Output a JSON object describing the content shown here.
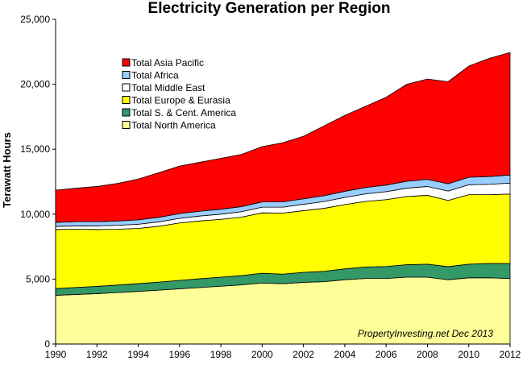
{
  "chart_data": {
    "type": "area",
    "stacked": true,
    "title": "Electricity  Generation per Region",
    "ylabel": "Terawatt Hours",
    "xlabel": "",
    "xlim": [
      1990,
      2012
    ],
    "ylim": [
      0,
      25000
    ],
    "x_ticks": [
      1990,
      1992,
      1994,
      1996,
      1998,
      2000,
      2002,
      2004,
      2006,
      2008,
      2010,
      2012
    ],
    "y_ticks": [
      "0",
      "5,000",
      "10,000",
      "15,000",
      "20,000",
      "25,000"
    ],
    "y_tick_values": [
      0,
      5000,
      10000,
      15000,
      20000,
      25000
    ],
    "grid": false,
    "legend_position": "top-left",
    "annotation": "PropertyInvesting.net  Dec 2013",
    "x": [
      1990,
      1991,
      1992,
      1993,
      1994,
      1995,
      1996,
      1997,
      1998,
      1999,
      2000,
      2001,
      2002,
      2003,
      2004,
      2005,
      2006,
      2007,
      2008,
      2009,
      2010,
      2011,
      2012
    ],
    "series": [
      {
        "name": "Total North America",
        "color": "#ffff99",
        "values": [
          3750,
          3820,
          3880,
          3960,
          4050,
          4150,
          4250,
          4350,
          4450,
          4550,
          4700,
          4650,
          4750,
          4800,
          4950,
          5050,
          5050,
          5150,
          5150,
          4950,
          5100,
          5100,
          5050
        ]
      },
      {
        "name": "Total S. & Cent. America",
        "color": "#339966",
        "values": [
          520,
          540,
          560,
          580,
          600,
          620,
          650,
          680,
          700,
          720,
          750,
          730,
          770,
          800,
          840,
          880,
          920,
          960,
          1000,
          1010,
          1050,
          1100,
          1150
        ]
      },
      {
        "name": "Total Europe & Eurasia",
        "color": "#ffff00",
        "values": [
          4550,
          4480,
          4380,
          4300,
          4250,
          4300,
          4420,
          4450,
          4450,
          4500,
          4650,
          4700,
          4750,
          4850,
          4950,
          5050,
          5150,
          5250,
          5300,
          5100,
          5350,
          5300,
          5350
        ]
      },
      {
        "name": "Total Middle East",
        "color": "#ffffff",
        "values": [
          240,
          260,
          280,
          300,
          320,
          340,
          360,
          380,
          400,
          420,
          440,
          460,
          490,
          520,
          550,
          580,
          610,
          640,
          680,
          720,
          760,
          800,
          840
        ]
      },
      {
        "name": "Total Africa",
        "color": "#99ccff",
        "values": [
          310,
          320,
          320,
          330,
          340,
          350,
          360,
          370,
          380,
          390,
          400,
          410,
          420,
          450,
          470,
          490,
          510,
          530,
          550,
          560,
          580,
          600,
          620
        ]
      },
      {
        "name": "Total Asia Pacific",
        "color": "#ff0000",
        "values": [
          2480,
          2580,
          2710,
          2900,
          3140,
          3440,
          3660,
          3770,
          3920,
          4020,
          4260,
          4550,
          4820,
          5380,
          5840,
          6250,
          6760,
          7470,
          7720,
          7860,
          8560,
          9100,
          9440
        ]
      }
    ]
  }
}
